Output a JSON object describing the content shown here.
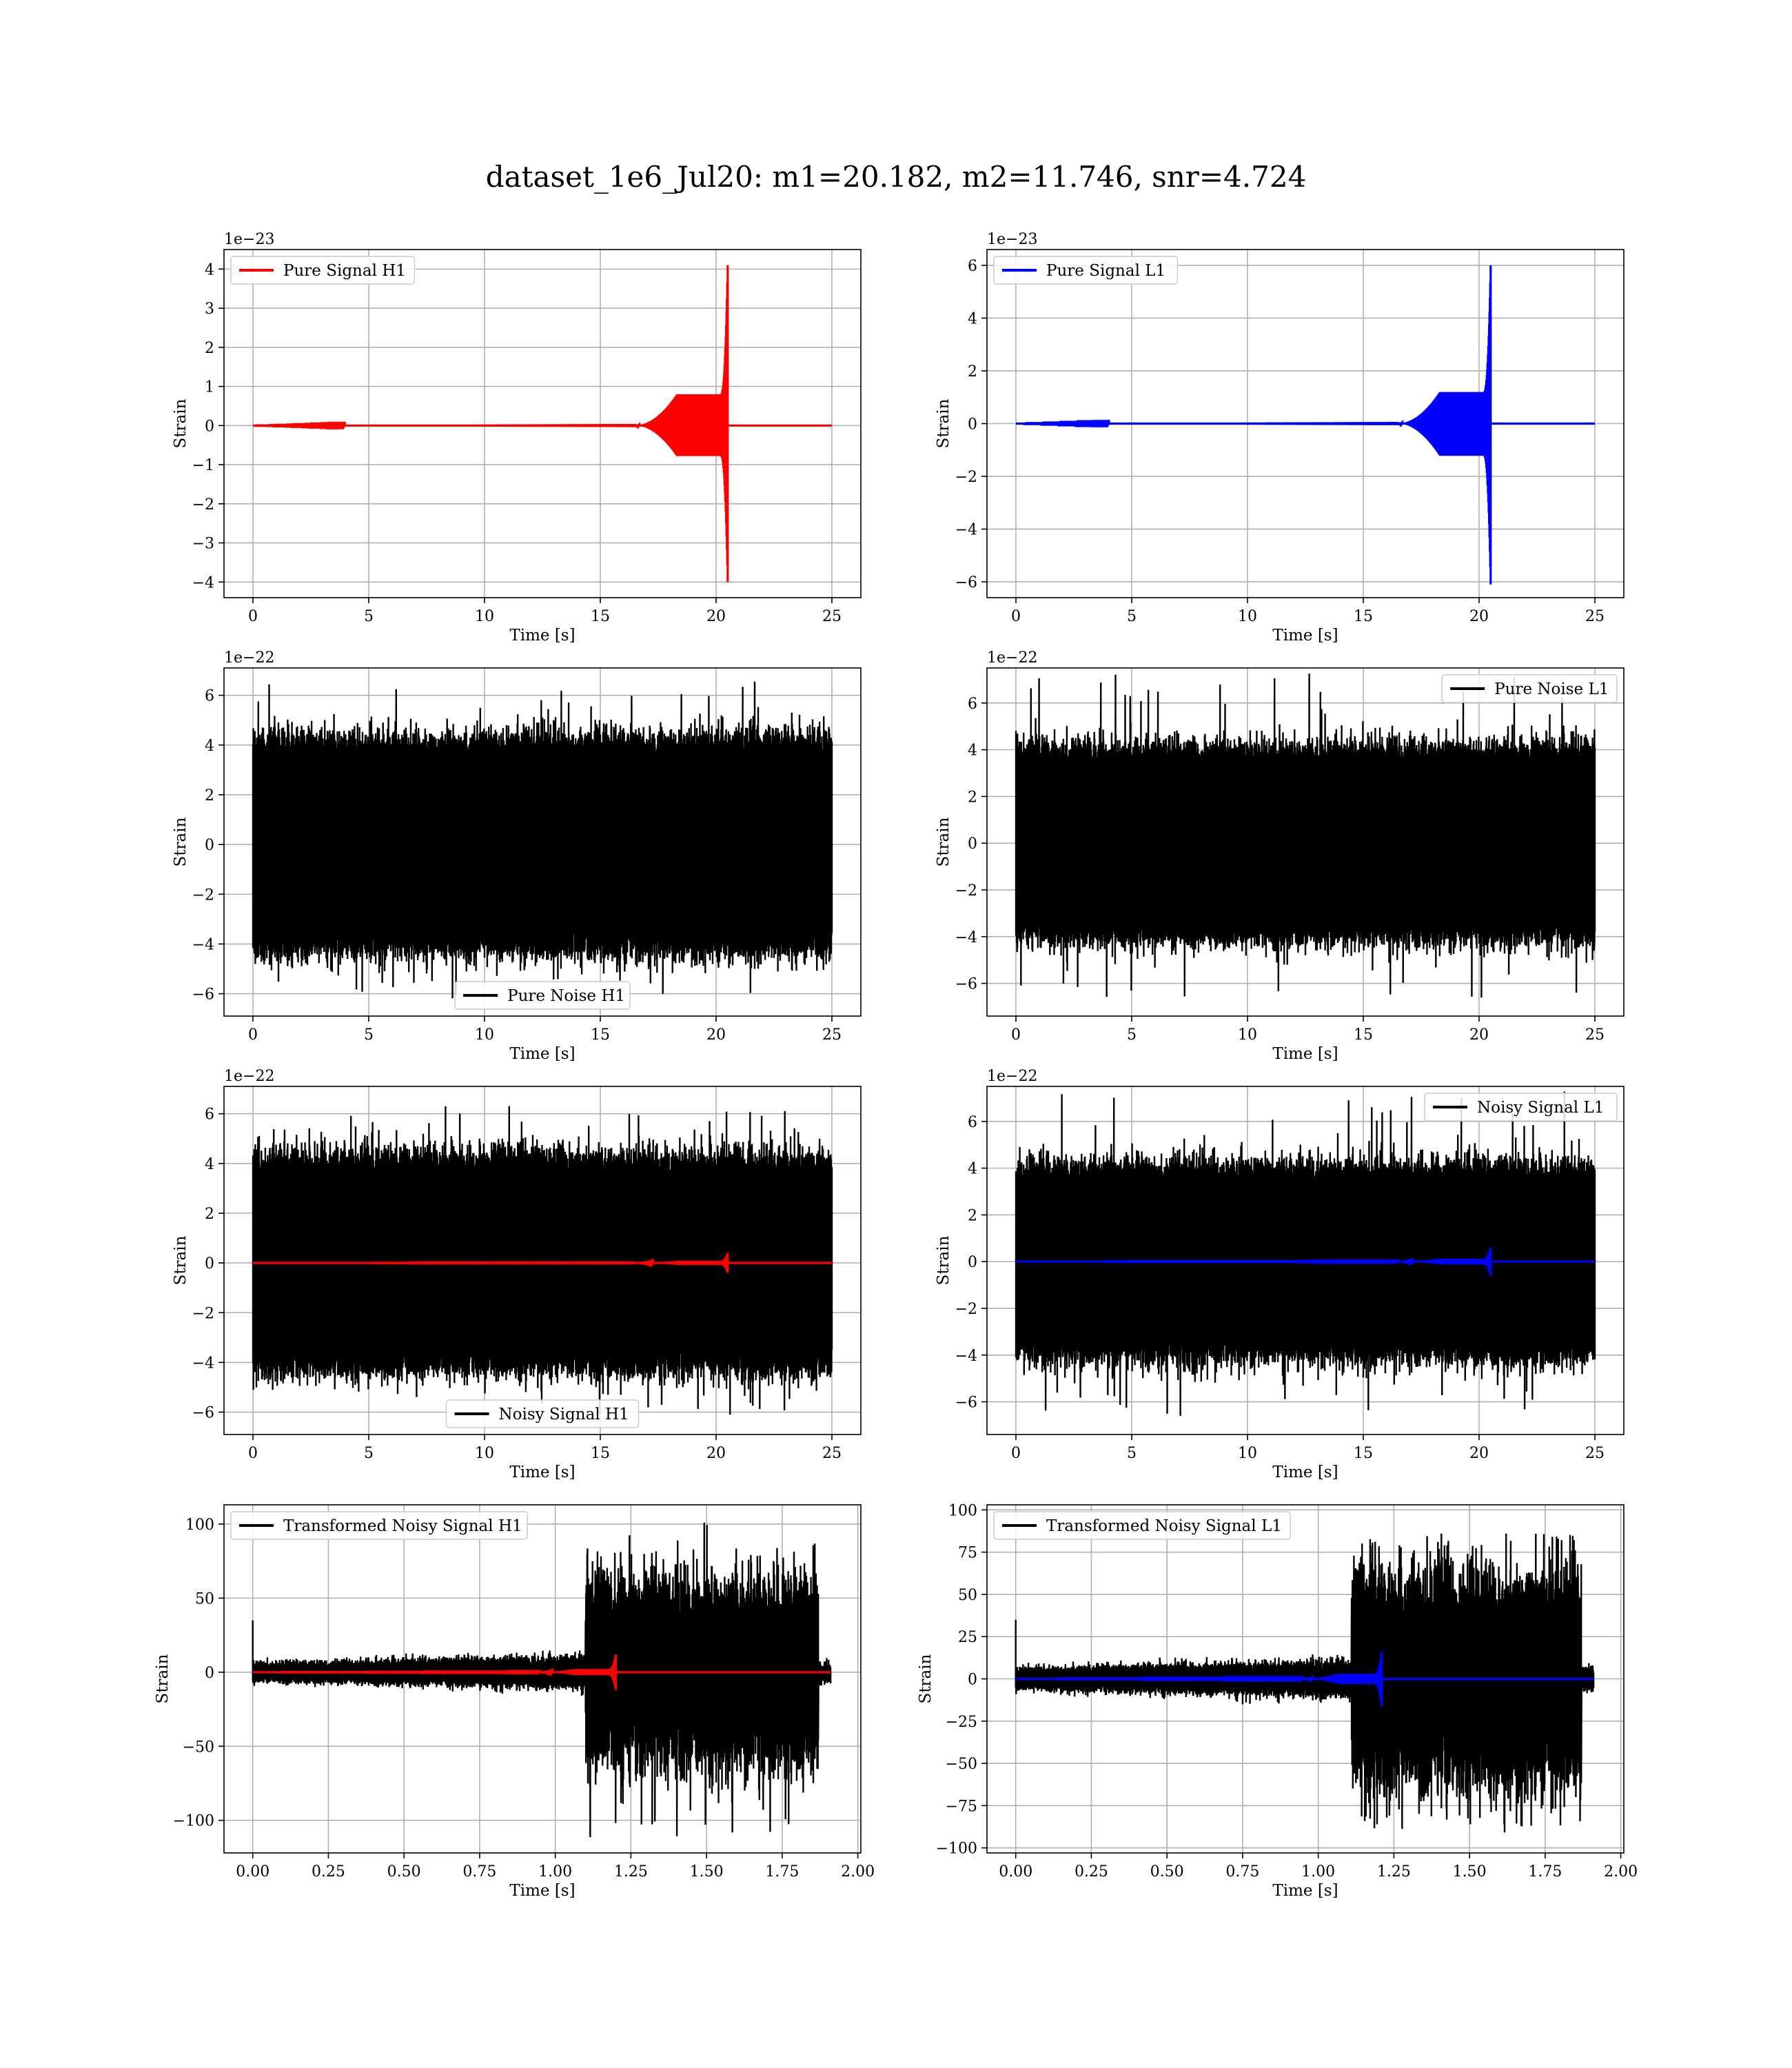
{
  "title": "dataset_1e6_Jul20: m1=20.182, m2=11.746, snr=4.724",
  "colors": {
    "h1": "#ff0000",
    "l1": "#0000ff",
    "noise": "#000000"
  },
  "chart_data": [
    {
      "id": "pure-signal-h1",
      "type": "line",
      "xlabel": "Time [s]",
      "ylabel": "Strain",
      "offset_text": "1e−23",
      "xlim": [
        -1.25,
        26.25
      ],
      "ylim": [
        -4.4,
        4.5
      ],
      "xticks": [
        0,
        5,
        10,
        15,
        20,
        25
      ],
      "xtick_labels": [
        "0",
        "5",
        "10",
        "15",
        "20",
        "25"
      ],
      "yticks": [
        -4,
        -3,
        -2,
        -1,
        0,
        1,
        2,
        3,
        4
      ],
      "ytick_labels": [
        "−4",
        "−3",
        "−2",
        "−1",
        "0",
        "1",
        "2",
        "3",
        "4"
      ],
      "legend": {
        "loc": "upper left"
      },
      "series": [
        {
          "name": "Pure Signal H1",
          "kind": "chirp",
          "color": "#ff0000",
          "x_start": 0,
          "x_end": 25,
          "merger": 20.5,
          "peak": 4.1,
          "trough": -4.0,
          "plateau": 0.8,
          "onset": 16.5
        }
      ]
    },
    {
      "id": "pure-signal-l1",
      "type": "line",
      "xlabel": "Time [s]",
      "ylabel": "Strain",
      "offset_text": "1e−23",
      "xlim": [
        -1.25,
        26.25
      ],
      "ylim": [
        -6.6,
        6.6
      ],
      "xticks": [
        0,
        5,
        10,
        15,
        20,
        25
      ],
      "xtick_labels": [
        "0",
        "5",
        "10",
        "15",
        "20",
        "25"
      ],
      "yticks": [
        -6,
        -4,
        -2,
        0,
        2,
        4,
        6
      ],
      "ytick_labels": [
        "−6",
        "−4",
        "−2",
        "0",
        "2",
        "4",
        "6"
      ],
      "legend": {
        "loc": "upper left"
      },
      "series": [
        {
          "name": "Pure Signal L1",
          "kind": "chirp",
          "color": "#0000ff",
          "x_start": 0,
          "x_end": 25,
          "merger": 20.5,
          "peak": 6.0,
          "trough": -6.1,
          "plateau": 1.2,
          "onset": 16.5
        }
      ]
    },
    {
      "id": "pure-noise-h1",
      "type": "line",
      "xlabel": "Time [s]",
      "ylabel": "Strain",
      "offset_text": "1e−22",
      "xlim": [
        -1.25,
        26.25
      ],
      "ylim": [
        -6.9,
        7.1
      ],
      "xticks": [
        0,
        5,
        10,
        15,
        20,
        25
      ],
      "xtick_labels": [
        "0",
        "5",
        "10",
        "15",
        "20",
        "25"
      ],
      "yticks": [
        -6,
        -4,
        -2,
        0,
        2,
        4,
        6
      ],
      "ytick_labels": [
        "−6",
        "−4",
        "−2",
        "0",
        "2",
        "4",
        "6"
      ],
      "legend": {
        "loc": "lower center"
      },
      "series": [
        {
          "name": "Pure Noise H1",
          "kind": "noise",
          "color": "#000000",
          "x_start": 0,
          "x_end": 25,
          "band": 4.2,
          "max": 6.6,
          "min": -6.2
        }
      ]
    },
    {
      "id": "pure-noise-l1",
      "type": "line",
      "xlabel": "Time [s]",
      "ylabel": "Strain",
      "offset_text": "1e−22",
      "xlim": [
        -1.25,
        26.25
      ],
      "ylim": [
        -7.4,
        7.5
      ],
      "xticks": [
        0,
        5,
        10,
        15,
        20,
        25
      ],
      "xtick_labels": [
        "0",
        "5",
        "10",
        "15",
        "20",
        "25"
      ],
      "yticks": [
        -6,
        -4,
        -2,
        0,
        2,
        4,
        6
      ],
      "ytick_labels": [
        "−6",
        "−4",
        "−2",
        "0",
        "2",
        "4",
        "6"
      ],
      "legend": {
        "loc": "upper right"
      },
      "series": [
        {
          "name": "Pure Noise L1",
          "kind": "noise",
          "color": "#000000",
          "x_start": 0,
          "x_end": 25,
          "band": 4.0,
          "max": 7.3,
          "min": -6.7
        }
      ]
    },
    {
      "id": "noisy-signal-h1",
      "type": "line",
      "xlabel": "Time [s]",
      "ylabel": "Strain",
      "offset_text": "1e−22",
      "xlim": [
        -1.25,
        26.25
      ],
      "ylim": [
        -6.9,
        7.1
      ],
      "xticks": [
        0,
        5,
        10,
        15,
        20,
        25
      ],
      "xtick_labels": [
        "0",
        "5",
        "10",
        "15",
        "20",
        "25"
      ],
      "yticks": [
        -6,
        -4,
        -2,
        0,
        2,
        4,
        6
      ],
      "ytick_labels": [
        "−6",
        "−4",
        "−2",
        "0",
        "2",
        "4",
        "6"
      ],
      "legend": {
        "loc": "lower center"
      },
      "series": [
        {
          "name": "Noisy Signal H1",
          "kind": "noise",
          "color": "#000000",
          "x_start": 0,
          "x_end": 25,
          "band": 4.2,
          "max": 6.6,
          "min": -6.2
        },
        {
          "kind": "chirp",
          "color": "#ff0000",
          "x_start": 0,
          "x_end": 25,
          "merger": 20.5,
          "peak": 0.41,
          "trough": -0.4,
          "plateau": 0.08,
          "onset": 16.5
        }
      ]
    },
    {
      "id": "noisy-signal-l1",
      "type": "line",
      "xlabel": "Time [s]",
      "ylabel": "Strain",
      "offset_text": "1e−22",
      "xlim": [
        -1.25,
        26.25
      ],
      "ylim": [
        -7.4,
        7.5
      ],
      "xticks": [
        0,
        5,
        10,
        15,
        20,
        25
      ],
      "xtick_labels": [
        "0",
        "5",
        "10",
        "15",
        "20",
        "25"
      ],
      "yticks": [
        -6,
        -4,
        -2,
        0,
        2,
        4,
        6
      ],
      "ytick_labels": [
        "−6",
        "−4",
        "−2",
        "0",
        "2",
        "4",
        "6"
      ],
      "legend": {
        "loc": "upper right"
      },
      "series": [
        {
          "name": "Noisy Signal L1",
          "kind": "noise",
          "color": "#000000",
          "x_start": 0,
          "x_end": 25,
          "band": 4.0,
          "max": 7.3,
          "min": -6.7
        },
        {
          "kind": "chirp",
          "color": "#0000ff",
          "x_start": 0,
          "x_end": 25,
          "merger": 20.5,
          "peak": 0.6,
          "trough": -0.61,
          "plateau": 0.12,
          "onset": 16.5
        }
      ]
    },
    {
      "id": "transformed-noisy-signal-h1",
      "type": "line",
      "xlabel": "Time [s]",
      "ylabel": "Strain",
      "offset_text": "",
      "xlim": [
        -0.095,
        2.01
      ],
      "ylim": [
        -122,
        113
      ],
      "xticks": [
        0,
        0.25,
        0.5,
        0.75,
        1.0,
        1.25,
        1.5,
        1.75,
        2.0
      ],
      "xtick_labels": [
        "0.00",
        "0.25",
        "0.50",
        "0.75",
        "1.00",
        "1.25",
        "1.50",
        "1.75",
        "2.00"
      ],
      "yticks": [
        -100,
        -50,
        0,
        50,
        100
      ],
      "ytick_labels": [
        "−100",
        "−50",
        "0",
        "50",
        "100"
      ],
      "legend": {
        "loc": "upper left"
      },
      "series": [
        {
          "name": "Transformed Noisy Signal H1",
          "kind": "whitened",
          "color": "#000000",
          "x_start": 0,
          "x_end": 1.91,
          "jump": 1.1,
          "early_band": 6,
          "late_band": 55,
          "max": 103,
          "min": -115,
          "drop": 1.87
        },
        {
          "kind": "chirp",
          "color": "#ff0000",
          "x_start": 0,
          "x_end": 1.91,
          "merger": 1.2,
          "peak": 12,
          "trough": -12,
          "plateau": 2,
          "onset": 0.95
        }
      ]
    },
    {
      "id": "transformed-noisy-signal-l1",
      "type": "line",
      "xlabel": "Time [s]",
      "ylabel": "Strain",
      "offset_text": "",
      "xlim": [
        -0.095,
        2.01
      ],
      "ylim": [
        -103,
        103
      ],
      "xticks": [
        0,
        0.25,
        0.5,
        0.75,
        1.0,
        1.25,
        1.5,
        1.75,
        2.0
      ],
      "xtick_labels": [
        "0.00",
        "0.25",
        "0.50",
        "0.75",
        "1.00",
        "1.25",
        "1.50",
        "1.75",
        "2.00"
      ],
      "yticks": [
        -100,
        -75,
        -50,
        -25,
        0,
        25,
        50,
        75,
        100
      ],
      "ytick_labels": [
        "−100",
        "−75",
        "−50",
        "−25",
        "0",
        "25",
        "50",
        "75",
        "100"
      ],
      "legend": {
        "loc": "upper left"
      },
      "series": [
        {
          "name": "Transformed Noisy Signal L1",
          "kind": "whitened",
          "color": "#000000",
          "x_start": 0,
          "x_end": 1.91,
          "jump": 1.11,
          "early_band": 6,
          "late_band": 55,
          "max": 86,
          "min": -94,
          "drop": 1.87
        },
        {
          "kind": "chirp",
          "color": "#0000ff",
          "x_start": 0,
          "x_end": 1.91,
          "merger": 1.21,
          "peak": 16,
          "trough": -16,
          "plateau": 3,
          "onset": 0.95
        }
      ]
    }
  ]
}
